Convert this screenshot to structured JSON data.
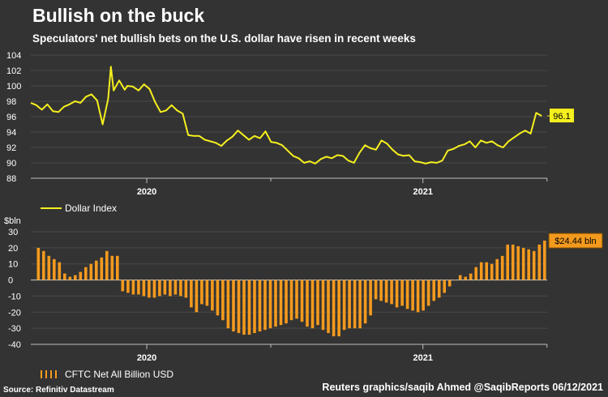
{
  "title": "Bullish on the buck",
  "subtitle": "Speculators' net bullish bets on the U.S. dollar have risen in recent weeks",
  "source": "Source: Refinitiv Datastream",
  "credit": "Reuters graphics/saqib Ahmed @SaqibReports 06/12/2021",
  "colors": {
    "line": "#f5ef1e",
    "bar": "#f39a1e",
    "background": "#333333",
    "grid": "#4a4a4a"
  },
  "chart_data": [
    {
      "type": "line",
      "title": "Dollar Index",
      "legend": "Dollar Index",
      "ylim": [
        88,
        104
      ],
      "yticks": [
        88,
        90,
        92,
        94,
        96,
        98,
        100,
        102,
        104
      ],
      "xlim": [
        2019.58,
        2021.45
      ],
      "year_labels": [
        {
          "x": 2020,
          "label": "2020"
        },
        {
          "x": 2021,
          "label": "2021"
        }
      ],
      "last_value_label": "96.1",
      "x": [
        2019.58,
        2019.6,
        2019.62,
        2019.64,
        2019.66,
        2019.68,
        2019.7,
        2019.72,
        2019.74,
        2019.76,
        2019.78,
        2019.8,
        2019.82,
        2019.84,
        2019.86,
        2019.87,
        2019.88,
        2019.9,
        2019.92,
        2019.93,
        2019.95,
        2019.97,
        2019.99,
        2020.01,
        2020.03,
        2020.05,
        2020.07,
        2020.09,
        2020.11,
        2020.13,
        2020.15,
        2020.17,
        2020.19,
        2020.21,
        2020.23,
        2020.25,
        2020.27,
        2020.29,
        2020.31,
        2020.33,
        2020.35,
        2020.37,
        2020.39,
        2020.41,
        2020.43,
        2020.45,
        2020.47,
        2020.49,
        2020.51,
        2020.53,
        2020.55,
        2020.57,
        2020.59,
        2020.61,
        2020.63,
        2020.65,
        2020.67,
        2020.69,
        2020.71,
        2020.73,
        2020.75,
        2020.77,
        2020.79,
        2020.81,
        2020.83,
        2020.85,
        2020.87,
        2020.89,
        2020.91,
        2020.93,
        2020.95,
        2020.97,
        2020.99,
        2021.01,
        2021.03,
        2021.05,
        2021.07,
        2021.09,
        2021.11,
        2021.13,
        2021.15,
        2021.17,
        2021.19,
        2021.21,
        2021.23,
        2021.25,
        2021.27,
        2021.29,
        2021.31,
        2021.33,
        2021.35,
        2021.37,
        2021.39,
        2021.41,
        2021.43
      ],
      "values": [
        97.8,
        97.5,
        96.9,
        97.6,
        96.7,
        96.6,
        97.3,
        97.6,
        98.0,
        97.8,
        98.6,
        98.9,
        98.1,
        95.0,
        98.3,
        102.5,
        99.4,
        100.7,
        99.5,
        100.0,
        99.9,
        99.4,
        100.2,
        99.6,
        97.9,
        96.6,
        96.8,
        97.5,
        96.8,
        96.4,
        93.6,
        93.5,
        93.5,
        93.0,
        92.8,
        92.6,
        92.2,
        92.9,
        93.4,
        94.2,
        93.6,
        93.0,
        93.5,
        93.2,
        94.1,
        92.7,
        92.6,
        92.3,
        91.6,
        90.9,
        90.6,
        90.0,
        90.2,
        89.9,
        90.5,
        90.8,
        90.6,
        91.0,
        90.9,
        90.3,
        90.0,
        91.3,
        92.3,
        91.9,
        91.7,
        92.9,
        92.5,
        91.7,
        91.1,
        90.9,
        91.0,
        90.2,
        90.1,
        89.9,
        90.1,
        90.0,
        90.3,
        91.6,
        91.8,
        92.2,
        92.4,
        92.8,
        92.0,
        92.9,
        92.6,
        92.8,
        92.3,
        92.0,
        92.8,
        93.3,
        93.8,
        94.2,
        93.8,
        96.5,
        96.1
      ]
    },
    {
      "type": "bar",
      "title": "CFTC Net All Billion USD",
      "legend": "CFTC Net All Billion USD",
      "ylabel": "$bln",
      "ylim": [
        -40,
        30
      ],
      "yticks": [
        -40,
        -30,
        -20,
        -10,
        0,
        10,
        20,
        30
      ],
      "xlim": [
        2019.58,
        2021.45
      ],
      "year_labels": [
        {
          "x": 2020,
          "label": "2020"
        },
        {
          "x": 2021,
          "label": "2021"
        }
      ],
      "last_value_label": "$24.44 bln",
      "values": [
        20,
        18,
        15,
        13,
        11,
        4,
        2,
        3,
        5,
        8,
        10,
        12,
        14,
        18,
        15,
        15,
        -7,
        -8,
        -9,
        -9,
        -10,
        -11,
        -11,
        -10,
        -9,
        -10,
        -9,
        -10,
        -11,
        -17,
        -20,
        -15,
        -16,
        -19,
        -22,
        -25,
        -30,
        -32,
        -33,
        -34,
        -34,
        -33,
        -32,
        -31,
        -30,
        -29,
        -28,
        -27,
        -25,
        -24,
        -26,
        -29,
        -30,
        -28,
        -31,
        -33,
        -35,
        -35,
        -31,
        -30,
        -30,
        -30,
        -27,
        -22,
        -12,
        -13,
        -14,
        -15,
        -17,
        -16,
        -18,
        -19,
        -20,
        -19,
        -16,
        -13,
        -11,
        -8,
        -4,
        0,
        3,
        2,
        4,
        8,
        11,
        11,
        10,
        13,
        15,
        22,
        22,
        21,
        20,
        19,
        18,
        22,
        24.44
      ]
    }
  ]
}
